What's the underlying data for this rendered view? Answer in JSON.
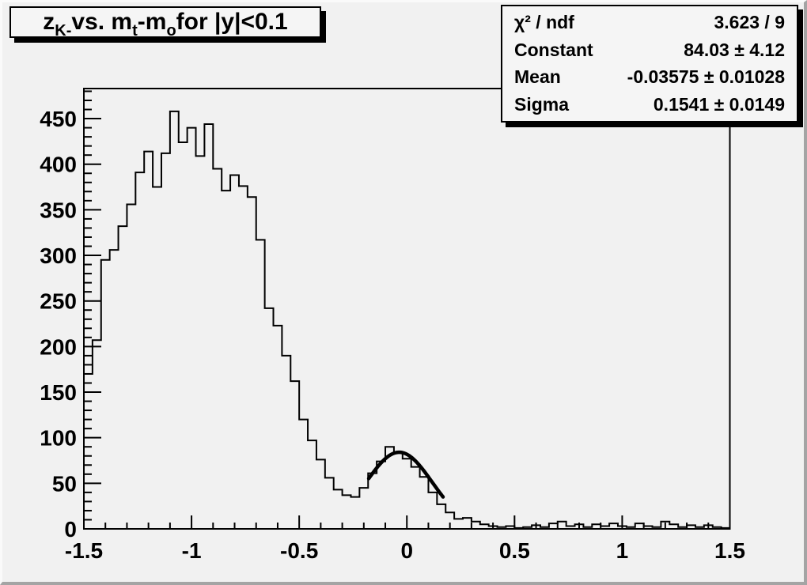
{
  "canvas": {
    "bg_color": "#f1f1f1",
    "bevel_light": "#fafafa",
    "bevel_dark": "#a4a4a4",
    "pave_bg": "#f5f5f5",
    "line_color": "#000000"
  },
  "title": {
    "plain": "z_{K-} vs. m_{t}-m_{o} for |y|<0.1",
    "segments": [
      {
        "text": "z"
      },
      {
        "text": "K-",
        "sub": true
      },
      {
        "text": " vs. m"
      },
      {
        "text": "t",
        "sub": true
      },
      {
        "text": "-m"
      },
      {
        "text": "o",
        "sub": true
      },
      {
        "text": " for |y|<0.1"
      }
    ]
  },
  "stats": {
    "rows": [
      {
        "label": "χ² / ndf",
        "value": "3.623 / 9"
      },
      {
        "label": "Constant",
        "value": "84.03 ± 4.12"
      },
      {
        "label": "Mean",
        "value": "-0.03575 ± 0.01028"
      },
      {
        "label": "Sigma",
        "value": "0.1541 ± 0.0149"
      }
    ]
  },
  "chart_data": {
    "type": "bar",
    "subtype": "step-histogram-with-gaussian-fit",
    "title": "z_{K-} vs. m_{t}-m_{o} for |y|<0.1",
    "xlabel": "",
    "ylabel": "",
    "xlim": [
      -1.5,
      1.5
    ],
    "ylim": [
      0,
      483
    ],
    "grid": false,
    "x_major_ticks": [
      {
        "v": -1.5,
        "label": "-1.5"
      },
      {
        "v": -1.0,
        "label": "-1"
      },
      {
        "v": -0.5,
        "label": "-0.5"
      },
      {
        "v": 0.0,
        "label": "0"
      },
      {
        "v": 0.5,
        "label": "0.5"
      },
      {
        "v": 1.0,
        "label": "1"
      },
      {
        "v": 1.5,
        "label": "1.5"
      }
    ],
    "x_minor_step": 0.1,
    "y_major_ticks": [
      {
        "v": 0,
        "label": "0"
      },
      {
        "v": 50,
        "label": "50"
      },
      {
        "v": 100,
        "label": "100"
      },
      {
        "v": 150,
        "label": "150"
      },
      {
        "v": 200,
        "label": "200"
      },
      {
        "v": 250,
        "label": "250"
      },
      {
        "v": 300,
        "label": "300"
      },
      {
        "v": 350,
        "label": "350"
      },
      {
        "v": 400,
        "label": "400"
      },
      {
        "v": 450,
        "label": "450"
      }
    ],
    "y_minor_step": 10,
    "bin_start": -1.5,
    "bin_width": 0.04,
    "bin_values": [
      170,
      207,
      295,
      306,
      332,
      356,
      391,
      414,
      375,
      412,
      458,
      424,
      440,
      409,
      444,
      395,
      371,
      388,
      376,
      364,
      317,
      242,
      223,
      190,
      162,
      120,
      97,
      76,
      56,
      43,
      37,
      35,
      45,
      61,
      74,
      90,
      84,
      77,
      68,
      57,
      40,
      27,
      18,
      11,
      12,
      8,
      5,
      3,
      2,
      3,
      1,
      2,
      4,
      2,
      6,
      8,
      3,
      5,
      2,
      5,
      3,
      6,
      3,
      2,
      6,
      3,
      2,
      8,
      5,
      2,
      4,
      2,
      4,
      2,
      1
    ],
    "fit": {
      "type": "gaussian",
      "constant": 84.03,
      "constant_err": 4.12,
      "mean": -0.03575,
      "mean_err": 0.01028,
      "sigma": 0.1541,
      "sigma_err": 0.0149,
      "chi2": 3.623,
      "ndf": 9,
      "draw_range": [
        -0.177,
        0.168
      ]
    }
  }
}
